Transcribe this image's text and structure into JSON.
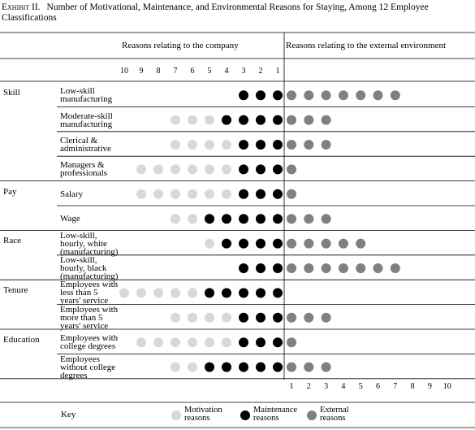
{
  "exhibit": {
    "label": "Exhibit II.",
    "title": "Number of Motivational, Maintenance, and Environmental Reasons for Staying, Among 12 Employee Classifications"
  },
  "headers": {
    "company": "Reasons relating to the company",
    "external": "Reasons relating to the external environment"
  },
  "company_scale": [
    10,
    9,
    8,
    7,
    6,
    5,
    4,
    3,
    2,
    1
  ],
  "external_scale": [
    1,
    2,
    3,
    4,
    5,
    6,
    7,
    8,
    9,
    10
  ],
  "groups": [
    {
      "name": "Skill",
      "rows": [
        {
          "label": "Low-skill manufacturing",
          "motivation": 0,
          "maintenance": 3,
          "external": 7
        },
        {
          "label": "Moderate-skill manufacturing",
          "motivation": 3,
          "maintenance": 4,
          "external": 3
        },
        {
          "label": "Clerical & administrative",
          "motivation": 4,
          "maintenance": 3,
          "external": 3
        },
        {
          "label": "Managers & professionals",
          "motivation": 6,
          "maintenance": 3,
          "external": 1
        }
      ]
    },
    {
      "name": "Pay",
      "rows": [
        {
          "label": "Salary",
          "motivation": 6,
          "maintenance": 3,
          "external": 1
        },
        {
          "label": "Wage",
          "motivation": 2,
          "maintenance": 5,
          "external": 3
        }
      ]
    },
    {
      "name": "Race",
      "rows": [
        {
          "label": "Low-skill, hourly, white (manufacturing)",
          "motivation": 1,
          "maintenance": 4,
          "external": 5
        },
        {
          "label": "Low-skill, hourly, black (manufacturing)",
          "motivation": 0,
          "maintenance": 3,
          "external": 7
        }
      ]
    },
    {
      "name": "Tenure",
      "rows": [
        {
          "label": "Employees with less than 5 years' service",
          "motivation": 5,
          "maintenance": 5,
          "external": 0
        },
        {
          "label": "Employees with more than 5 years' service",
          "motivation": 4,
          "maintenance": 3,
          "external": 3
        }
      ]
    },
    {
      "name": "Education",
      "rows": [
        {
          "label": "Employees with college degrees",
          "motivation": 6,
          "maintenance": 3,
          "external": 1
        },
        {
          "label": "Employees without college degrees",
          "motivation": 2,
          "maintenance": 5,
          "external": 3
        }
      ]
    }
  ],
  "key": {
    "title": "Key",
    "items": [
      {
        "label": "Motivation reasons",
        "color": "#d8d8d8"
      },
      {
        "label": "Maintenance reasons",
        "color": "#000000"
      },
      {
        "label": "External reasons",
        "color": "#808080"
      }
    ]
  }
}
